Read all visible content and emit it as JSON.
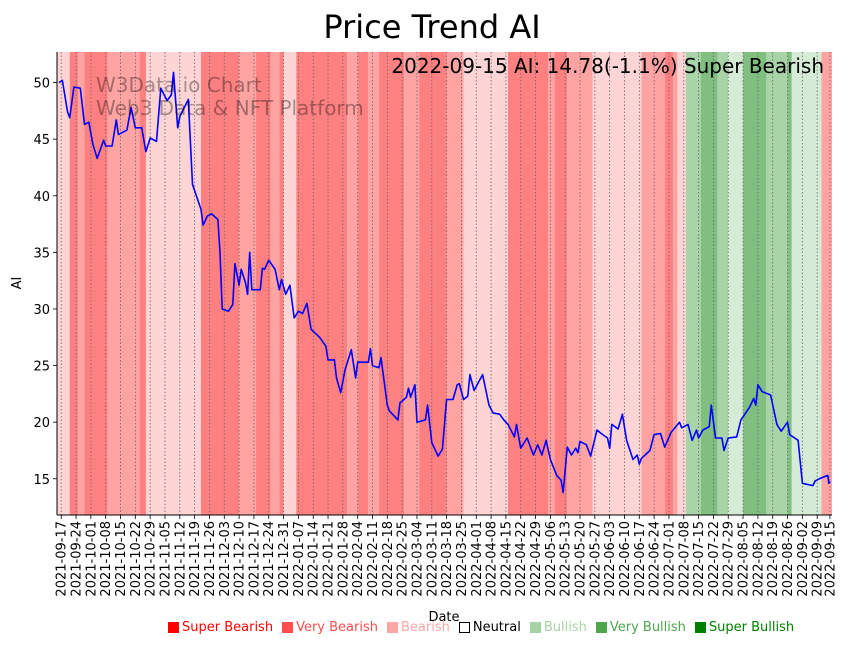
{
  "chart_data": {
    "type": "line",
    "title": "Price Trend AI",
    "xlabel": "Date",
    "ylabel": "AI",
    "annotation": "2022-09-15 AI: 14.78(-1.1%) Super Bearish",
    "watermark": [
      "W3Data.io Chart",
      "Web3 Data & NFT Platform"
    ],
    "start_date": "2021-09-17",
    "xlim_days": [
      -2,
      364
    ],
    "ylim": [
      11.8,
      52.7
    ],
    "yticks": [
      15,
      20,
      25,
      30,
      35,
      40,
      45,
      50
    ],
    "xtick_labels": [
      "2021-09-17",
      "2021-09-24",
      "2021-10-01",
      "2021-10-08",
      "2021-10-15",
      "2021-10-22",
      "2021-10-29",
      "2021-11-05",
      "2021-11-12",
      "2021-11-19",
      "2021-11-26",
      "2021-12-03",
      "2021-12-10",
      "2021-12-17",
      "2021-12-24",
      "2021-12-31",
      "2022-01-07",
      "2022-01-14",
      "2022-01-21",
      "2022-01-28",
      "2022-02-04",
      "2022-02-11",
      "2022-02-18",
      "2022-02-25",
      "2022-03-04",
      "2022-03-11",
      "2022-03-18",
      "2022-03-25",
      "2022-04-01",
      "2022-04-08",
      "2022-04-15",
      "2022-04-22",
      "2022-04-29",
      "2022-05-06",
      "2022-05-13",
      "2022-05-20",
      "2022-05-27",
      "2022-06-03",
      "2022-06-10",
      "2022-06-17",
      "2022-06-24",
      "2022-07-01",
      "2022-07-08",
      "2022-07-15",
      "2022-07-22",
      "2022-07-29",
      "2022-08-05",
      "2022-08-12",
      "2022-08-19",
      "2022-08-26",
      "2022-09-02",
      "2022-09-09",
      "2022-09-15"
    ],
    "xtick_days": [
      0,
      7,
      14,
      21,
      28,
      35,
      42,
      49,
      56,
      63,
      70,
      77,
      84,
      91,
      98,
      105,
      112,
      119,
      126,
      133,
      140,
      147,
      154,
      161,
      168,
      175,
      182,
      189,
      196,
      203,
      210,
      217,
      224,
      231,
      238,
      245,
      252,
      259,
      266,
      273,
      280,
      287,
      294,
      301,
      308,
      315,
      322,
      329,
      336,
      343,
      350,
      357,
      363
    ],
    "series": [
      {
        "name": "AI",
        "color": "#0000ff",
        "points": [
          [
            -1,
            50
          ],
          [
            0.5,
            50.2
          ],
          [
            3,
            47.4
          ],
          [
            4,
            46.9
          ],
          [
            6,
            49.6
          ],
          [
            9,
            49.5
          ],
          [
            11,
            46.3
          ],
          [
            13,
            46.5
          ],
          [
            15,
            44.5
          ],
          [
            17,
            43.3
          ],
          [
            20,
            44.9
          ],
          [
            21,
            44.4
          ],
          [
            24,
            44.4
          ],
          [
            26,
            46.7
          ],
          [
            27,
            45.4
          ],
          [
            31,
            45.8
          ],
          [
            33,
            47.8
          ],
          [
            35,
            46
          ],
          [
            38,
            46
          ],
          [
            40,
            43.9
          ],
          [
            42,
            45.1
          ],
          [
            45,
            44.8
          ],
          [
            47,
            49.5
          ],
          [
            50,
            48.4
          ],
          [
            52,
            48.9
          ],
          [
            53,
            50.9
          ],
          [
            55,
            46
          ],
          [
            56,
            47
          ],
          [
            60,
            48.5
          ],
          [
            62,
            41
          ],
          [
            66,
            38.8
          ],
          [
            67,
            37.4
          ],
          [
            69,
            38.2
          ],
          [
            71,
            38.4
          ],
          [
            74,
            37.9
          ],
          [
            75,
            35
          ],
          [
            76,
            30
          ],
          [
            79,
            29.8
          ],
          [
            81,
            30.4
          ],
          [
            82,
            34
          ],
          [
            84,
            32.1
          ],
          [
            85,
            33.5
          ],
          [
            87,
            32.3
          ],
          [
            88,
            31.3
          ],
          [
            89,
            35
          ],
          [
            90,
            31.7
          ],
          [
            94,
            31.7
          ],
          [
            95,
            33.6
          ],
          [
            96,
            33.5
          ],
          [
            98,
            34.3
          ],
          [
            101,
            33.5
          ],
          [
            103,
            31.7
          ],
          [
            104,
            32.6
          ],
          [
            106,
            31.3
          ],
          [
            108,
            32.1
          ],
          [
            110,
            29.2
          ],
          [
            112,
            29.8
          ],
          [
            114,
            29.6
          ],
          [
            116,
            30.5
          ],
          [
            118,
            28.2
          ],
          [
            122,
            27.5
          ],
          [
            125,
            26.7
          ],
          [
            126,
            25.5
          ],
          [
            129,
            25.5
          ],
          [
            130,
            23.9
          ],
          [
            132,
            22.6
          ],
          [
            134,
            24.6
          ],
          [
            137,
            26.4
          ],
          [
            139,
            23.9
          ],
          [
            140,
            25.3
          ],
          [
            145,
            25.3
          ],
          [
            146,
            26.5
          ],
          [
            147,
            25
          ],
          [
            150,
            24.8
          ],
          [
            151,
            25.7
          ],
          [
            154,
            21.5
          ],
          [
            155,
            21
          ],
          [
            159,
            20.2
          ],
          [
            160,
            21.7
          ],
          [
            163,
            22.2
          ],
          [
            164,
            23
          ],
          [
            165,
            22.2
          ],
          [
            167,
            23.3
          ],
          [
            168,
            20
          ],
          [
            172,
            20.2
          ],
          [
            173,
            21.5
          ],
          [
            175,
            18.2
          ],
          [
            178,
            17
          ],
          [
            180,
            17.6
          ],
          [
            182,
            22
          ],
          [
            185,
            22
          ],
          [
            187,
            23.3
          ],
          [
            188,
            23.4
          ],
          [
            190,
            22
          ],
          [
            192,
            22.3
          ],
          [
            193,
            24.2
          ],
          [
            195,
            22.8
          ],
          [
            199,
            24.2
          ],
          [
            202,
            21.5
          ],
          [
            204,
            20.8
          ],
          [
            207,
            20.7
          ],
          [
            209,
            20.2
          ],
          [
            211,
            19.8
          ],
          [
            214,
            18.7
          ],
          [
            215,
            19.8
          ],
          [
            217,
            17.7
          ],
          [
            220,
            18.6
          ],
          [
            223,
            17.1
          ],
          [
            225,
            18
          ],
          [
            227,
            17.1
          ],
          [
            229,
            18.4
          ],
          [
            231,
            16.7
          ],
          [
            234,
            15.3
          ],
          [
            236,
            14.9
          ],
          [
            237,
            13.8
          ],
          [
            239,
            17.8
          ],
          [
            241,
            17.1
          ],
          [
            243,
            17.7
          ],
          [
            244,
            17.3
          ],
          [
            245,
            18.3
          ],
          [
            248,
            18
          ],
          [
            250,
            17
          ],
          [
            253,
            19.3
          ],
          [
            255,
            19
          ],
          [
            258,
            18.6
          ],
          [
            259,
            17.7
          ],
          [
            260,
            19.8
          ],
          [
            263,
            19.4
          ],
          [
            265,
            20.7
          ],
          [
            267,
            18.4
          ],
          [
            270,
            16.7
          ],
          [
            272,
            17.1
          ],
          [
            273,
            16.3
          ],
          [
            274,
            16.8
          ],
          [
            278,
            17.5
          ],
          [
            280,
            18.9
          ],
          [
            283,
            19
          ],
          [
            285,
            17.8
          ],
          [
            288,
            19.1
          ],
          [
            292,
            20
          ],
          [
            293,
            19.5
          ],
          [
            296,
            19.8
          ],
          [
            298,
            18.4
          ],
          [
            300,
            19.3
          ],
          [
            301,
            18.6
          ],
          [
            303,
            19.3
          ],
          [
            306,
            19.6
          ],
          [
            307,
            21.5
          ],
          [
            309,
            18.6
          ],
          [
            312,
            18.6
          ],
          [
            313,
            17.5
          ],
          [
            315,
            18.6
          ],
          [
            319,
            18.7
          ],
          [
            321,
            20.2
          ],
          [
            325,
            21.3
          ],
          [
            327,
            22.1
          ],
          [
            328,
            21.5
          ],
          [
            329,
            23.3
          ],
          [
            331,
            22.7
          ],
          [
            335,
            22.4
          ],
          [
            338,
            19.8
          ],
          [
            340,
            19.2
          ],
          [
            343,
            20
          ],
          [
            344,
            18.9
          ],
          [
            348,
            18.4
          ],
          [
            350,
            14.6
          ],
          [
            355,
            14.4
          ],
          [
            356,
            14.8
          ],
          [
            358,
            15
          ],
          [
            362,
            15.3
          ],
          [
            362.5,
            14.6
          ],
          [
            363,
            14.78
          ]
        ]
      }
    ],
    "sentiment_bands": [
      [
        -2,
        4,
        -1
      ],
      [
        4,
        8,
        -3
      ],
      [
        8,
        11,
        -2
      ],
      [
        11,
        22,
        -3
      ],
      [
        22,
        37,
        -2
      ],
      [
        37,
        40,
        -3
      ],
      [
        40,
        66,
        -1
      ],
      [
        66,
        84,
        -3
      ],
      [
        84,
        92,
        -2
      ],
      [
        92,
        99,
        -3
      ],
      [
        99,
        103,
        -2
      ],
      [
        103,
        105,
        -3
      ],
      [
        105,
        111,
        -1
      ],
      [
        111,
        135,
        -3
      ],
      [
        135,
        140,
        -2
      ],
      [
        140,
        145,
        -3
      ],
      [
        145,
        150,
        -2
      ],
      [
        150,
        162,
        -3
      ],
      [
        162,
        169,
        -2
      ],
      [
        169,
        182,
        -3
      ],
      [
        182,
        190,
        -2
      ],
      [
        190,
        211,
        -1
      ],
      [
        211,
        230,
        -3
      ],
      [
        230,
        233,
        -2
      ],
      [
        233,
        239,
        -3
      ],
      [
        239,
        251,
        -2
      ],
      [
        251,
        274,
        -1
      ],
      [
        274,
        285,
        -2
      ],
      [
        285,
        289,
        -3
      ],
      [
        289,
        291,
        -2
      ],
      [
        291,
        295,
        -1
      ],
      [
        295,
        302,
        2
      ],
      [
        302,
        310,
        3
      ],
      [
        310,
        315,
        2
      ],
      [
        315,
        322,
        1
      ],
      [
        322,
        333,
        3
      ],
      [
        333,
        343,
        2
      ],
      [
        343,
        345,
        3
      ],
      [
        345,
        359,
        1
      ],
      [
        359,
        364,
        -2
      ]
    ],
    "band_colors": {
      "-3": "#ff8080",
      "-2": "#ffa3a3",
      "-1": "#ffd4d4",
      "0": "#ffffff",
      "1": "#d6ebd6",
      "2": "#a8d4a8",
      "3": "#80bf80"
    },
    "legend": {
      "placement": "bottom",
      "items": [
        {
          "label": "Super Bearish",
          "color": "#ff0000",
          "filled": true
        },
        {
          "label": "Very Bearish",
          "color": "#ff4d4d",
          "filled": true
        },
        {
          "label": "Bearish",
          "color": "#ffa6a6",
          "filled": true
        },
        {
          "label": "Neutral",
          "color": "#000000",
          "filled": false
        },
        {
          "label": "Bullish",
          "color": "#a6d4a6",
          "filled": true
        },
        {
          "label": "Very Bullish",
          "color": "#4da64d",
          "filled": true
        },
        {
          "label": "Super Bullish",
          "color": "#008000",
          "filled": true
        }
      ]
    }
  }
}
